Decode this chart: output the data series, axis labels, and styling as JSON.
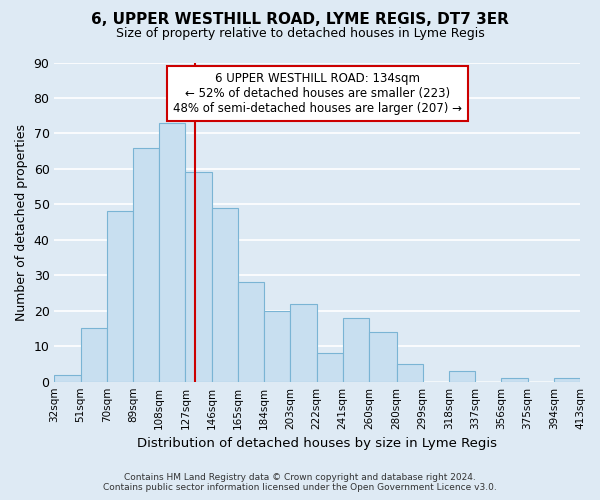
{
  "title": "6, UPPER WESTHILL ROAD, LYME REGIS, DT7 3ER",
  "subtitle": "Size of property relative to detached houses in Lyme Regis",
  "xlabel": "Distribution of detached houses by size in Lyme Regis",
  "ylabel": "Number of detached properties",
  "footer_line1": "Contains HM Land Registry data © Crown copyright and database right 2024.",
  "footer_line2": "Contains public sector information licensed under the Open Government Licence v3.0.",
  "annotation_line1": "6 UPPER WESTHILL ROAD: 134sqm",
  "annotation_line2": "← 52% of detached houses are smaller (223)",
  "annotation_line3": "48% of semi-detached houses are larger (207) →",
  "bar_edges": [
    32,
    51,
    70,
    89,
    108,
    127,
    146,
    165,
    184,
    203,
    222,
    241,
    260,
    280,
    299,
    318,
    337,
    356,
    375,
    394,
    413
  ],
  "bar_heights": [
    2,
    15,
    48,
    66,
    73,
    59,
    49,
    28,
    20,
    22,
    8,
    18,
    14,
    5,
    0,
    3,
    0,
    1,
    0,
    1
  ],
  "bar_color": "#c8dff0",
  "bar_edge_color": "#7ab4d4",
  "property_line_x": 134,
  "property_line_color": "#cc0000",
  "ylim": [
    0,
    90
  ],
  "yticks": [
    0,
    10,
    20,
    30,
    40,
    50,
    60,
    70,
    80,
    90
  ],
  "xtick_labels": [
    "32sqm",
    "51sqm",
    "70sqm",
    "89sqm",
    "108sqm",
    "127sqm",
    "146sqm",
    "165sqm",
    "184sqm",
    "203sqm",
    "222sqm",
    "241sqm",
    "260sqm",
    "280sqm",
    "299sqm",
    "318sqm",
    "337sqm",
    "356sqm",
    "375sqm",
    "394sqm",
    "413sqm"
  ],
  "annotation_box_color": "#ffffff",
  "annotation_box_edge": "#cc0000",
  "grid_color": "#ffffff",
  "bg_color": "#deeaf4"
}
